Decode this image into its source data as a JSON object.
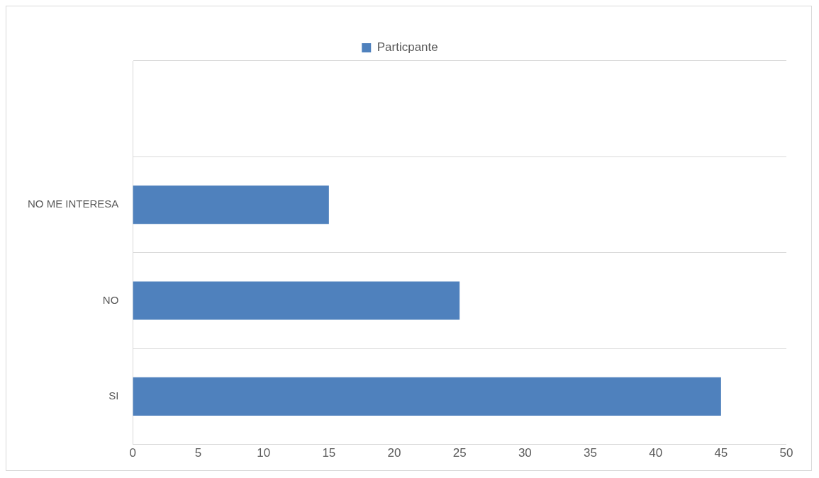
{
  "chart_data": {
    "type": "bar",
    "orientation": "horizontal",
    "categories": [
      null,
      "NO ME INTERESA",
      "NO",
      "SI"
    ],
    "series": [
      {
        "name": "Particpante",
        "color": "#4f81bd",
        "values": [
          null,
          15,
          25,
          45
        ]
      }
    ],
    "xlim": [
      0,
      50
    ],
    "xticks": [
      0,
      5,
      10,
      15,
      20,
      25,
      30,
      35,
      40,
      45,
      50
    ],
    "grid": "y",
    "legend": "top"
  }
}
